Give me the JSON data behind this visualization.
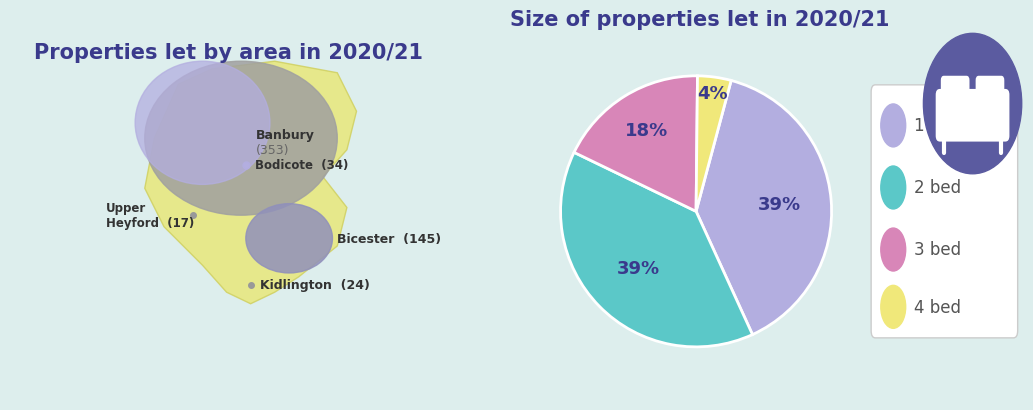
{
  "title_left": "Properties let by area in 2020/21",
  "title_right": "Size of properties let in 2020/21",
  "title_color": "#3a3a8c",
  "background_color": "#ddeeed",
  "slices": [
    39,
    39,
    18,
    4
  ],
  "pct_labels": [
    "39%",
    "39%",
    "18%",
    "4%"
  ],
  "colors": [
    "#b3aee0",
    "#5bc8c8",
    "#d886b8",
    "#f0e87a"
  ],
  "legend_labels": [
    "1 bed",
    "2 bed",
    "3 bed",
    "4 bed"
  ],
  "startangle": 75,
  "pct_label_color": "#3a3a8c",
  "pct_fontsize": 13,
  "title_fontsize": 15,
  "legend_fontsize": 12,
  "pct_distances": [
    0.62,
    0.6,
    0.7,
    0.88
  ],
  "map_bg_color": "#e8f2d0",
  "banbury_circle_color1": "#b3aee0",
  "banbury_circle_color2": "#a0a0a0",
  "bicester_circle_color": "#9090bb",
  "map_shape_color": "#e8e87a",
  "legend_text_color": "#555555",
  "legend_box_color": "#ffffff",
  "legend_border_color": "#cccccc"
}
